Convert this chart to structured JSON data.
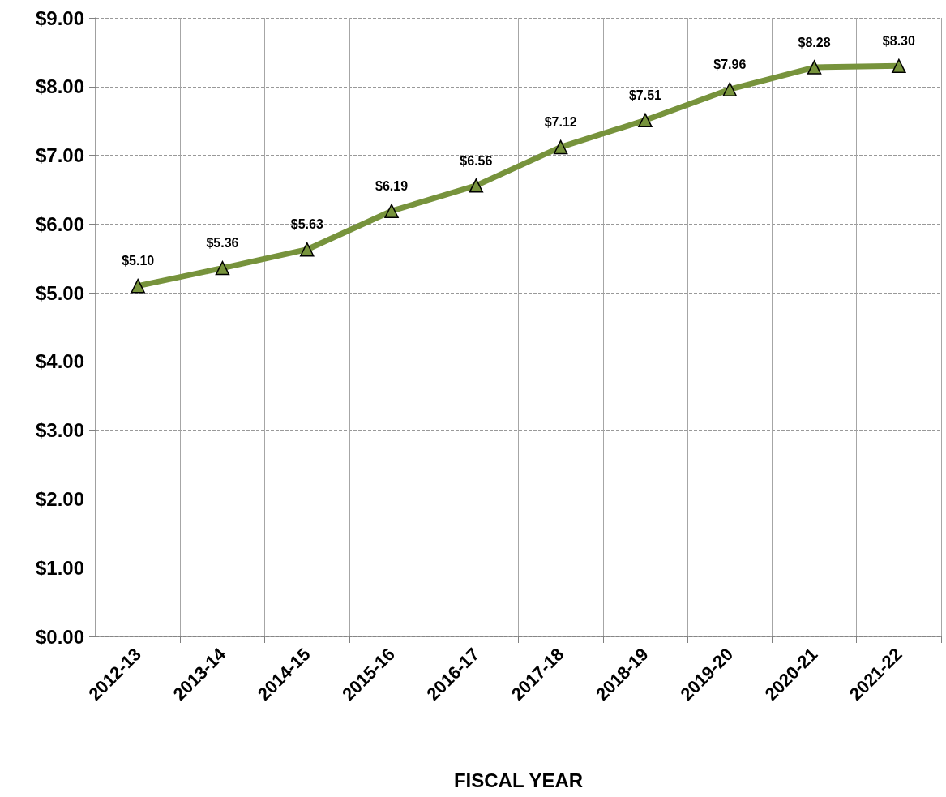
{
  "chart_data": {
    "type": "line",
    "xlabel": "FISCAL YEAR",
    "categories": [
      "2012-13",
      "2013-14",
      "2014-15",
      "2015-16",
      "2016-17",
      "2017-18",
      "2018-19",
      "2019-20",
      "2020-21",
      "2021-22"
    ],
    "series": [
      {
        "color": "#77933c",
        "values": [
          5.1,
          5.36,
          5.63,
          6.19,
          6.56,
          7.12,
          7.51,
          7.96,
          8.28,
          8.3
        ],
        "value_labels": [
          "$5.10",
          "$5.36",
          "$5.63",
          "$6.19",
          "$6.56",
          "$7.12",
          "$7.51",
          "$7.96",
          "$8.28",
          "$8.30"
        ]
      }
    ],
    "ylim": [
      0,
      9
    ],
    "yticks": [
      {
        "value": 0,
        "label": "$0.00"
      },
      {
        "value": 1,
        "label": "$1.00"
      },
      {
        "value": 2,
        "label": "$2.00"
      },
      {
        "value": 3,
        "label": "$3.00"
      },
      {
        "value": 4,
        "label": "$4.00"
      },
      {
        "value": 5,
        "label": "$5.00"
      },
      {
        "value": 6,
        "label": "$6.00"
      },
      {
        "value": 7,
        "label": "$7.00"
      },
      {
        "value": 8,
        "label": "$8.00"
      },
      {
        "value": 9,
        "label": "$9.00"
      }
    ],
    "grid": true,
    "marker": "triangle",
    "line_style": "solid"
  }
}
